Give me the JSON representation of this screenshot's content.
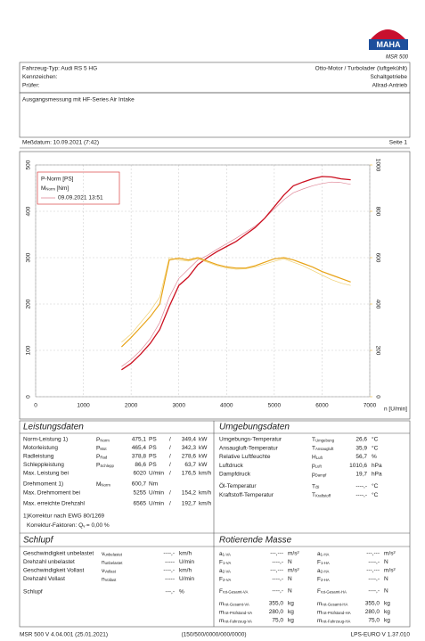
{
  "header": {
    "logo": "MAHA",
    "model": "MSR 500",
    "left": [
      "Fahrzeug-Typ:  Audi RS 5 HG",
      "Kennzeichen:",
      "Prüfer:"
    ],
    "right": [
      "Otto-Motor / Turbolader (luftgekühlt)",
      "Schaltgetriebe",
      "Allrad-Antrieb"
    ],
    "comment": "Ausgangsmessung mit HF-Series Air Intake",
    "date": "Meßdatum: 10.09.2021 (7:42)",
    "page": "Seite 1"
  },
  "chart": {
    "type": "line",
    "xlabel": "n [U/min]",
    "legend": {
      "power": "P-Norm [PS]",
      "torque": {
        "base": "M",
        "sub": "Norm",
        "rest": "[Nm]"
      },
      "reference": "09.09.2021 13:51"
    },
    "xlim": [
      0,
      7000
    ],
    "xticks": [
      0,
      1000,
      2000,
      3000,
      4000,
      5000,
      6000,
      7000
    ],
    "ylim": [
      0,
      500
    ],
    "yticks": [
      0,
      100,
      200,
      300,
      400,
      500
    ],
    "y2lim": [
      0,
      1000
    ],
    "y2ticks": [
      0,
      200,
      400,
      600,
      800,
      1000
    ],
    "grid": true,
    "x": [
      1800,
      2000,
      2200,
      2400,
      2600,
      2800,
      3000,
      3200,
      3400,
      3600,
      3800,
      4000,
      4200,
      4400,
      4600,
      4800,
      5000,
      5200,
      5400,
      5600,
      5800,
      6000,
      6200,
      6400,
      6600
    ],
    "series": [
      {
        "color": "#e08a9a",
        "width": 0.7,
        "values": [
          65,
          80,
          100,
          125,
          160,
          215,
          255,
          275,
          295,
          305,
          318,
          330,
          342,
          355,
          368,
          385,
          405,
          425,
          440,
          448,
          455,
          460,
          463,
          462,
          458
        ]
      },
      {
        "color": "#cc1020",
        "width": 1.3,
        "values": [
          58,
          72,
          92,
          115,
          145,
          195,
          240,
          258,
          285,
          300,
          313,
          324,
          335,
          350,
          365,
          385,
          410,
          435,
          455,
          463,
          470,
          475,
          474,
          470,
          468
        ]
      },
      {
        "color": "#f0d070",
        "width": 0.7,
        "axis": "y2",
        "values": [
          235,
          270,
          320,
          370,
          430,
          600,
          590,
          585,
          595,
          580,
          565,
          555,
          550,
          552,
          560,
          572,
          585,
          595,
          580,
          565,
          545,
          525,
          505,
          490,
          480
        ]
      },
      {
        "color": "#e8a317",
        "width": 1.2,
        "axis": "y2",
        "values": [
          215,
          255,
          300,
          345,
          400,
          590,
          598,
          590,
          600,
          585,
          570,
          560,
          555,
          555,
          565,
          580,
          595,
          600,
          590,
          575,
          560,
          540,
          525,
          510,
          495
        ]
      }
    ]
  },
  "performance": {
    "title": "Leistungsdaten",
    "rows": [
      {
        "label": "Norm-Leistung 1)",
        "sym": "P",
        "sub": "Norm",
        "v1": "475,1",
        "u1": "PS",
        "sep": "/",
        "v2": "349,4",
        "u2": "kW",
        "color": "#d62020"
      },
      {
        "label": "Motorleistung",
        "sym": "P",
        "sub": "Mot",
        "v1": "465,4",
        "u1": "PS",
        "sep": "/",
        "v2": "342,3",
        "u2": "kW",
        "color": "#d62020"
      },
      {
        "label": "Radleistung",
        "sym": "P",
        "sub": "Rad",
        "v1": "378,8",
        "u1": "PS",
        "sep": "/",
        "v2": "278,6",
        "u2": "kW",
        "color": "#2a2aa8"
      },
      {
        "label": "Schleppleistung",
        "sym": "P",
        "sub": "Schlepp",
        "v1": "86,6",
        "u1": "PS",
        "sep": "/",
        "v2": "63,7",
        "u2": "kW",
        "color": "#2a8a2a"
      },
      {
        "label": "Max. Leistung bei",
        "v1": "6020",
        "u1": "U/min",
        "sep": "/",
        "v2": "176,5",
        "u2": "km/h",
        "color": "#444444"
      },
      {
        "label": "Drehmoment 1)",
        "sym": "M",
        "sub": "Norm",
        "v1": "600,7",
        "u1": "Nm",
        "color": "#e0a000"
      },
      {
        "label": "Max. Drehmoment bei",
        "v1": "5255",
        "u1": "U/min",
        "sep": "/",
        "v2": "154,2",
        "u2": "km/h",
        "color": "#444444"
      },
      {
        "label": "Max. erreichte Drehzahl",
        "v1": "6565",
        "u1": "U/min",
        "sep": "/",
        "v2": "192,7",
        "u2": "km/h",
        "color": "#444444"
      }
    ],
    "note1": "1)Korrektur nach EWG 80/1269",
    "note2": {
      "text": "Korrektur-Faktoren: Q",
      "sub": "v",
      "rest": "=  0,00 %"
    }
  },
  "environment": {
    "title": "Umgebungsdaten",
    "rows": [
      {
        "label": "Umgebungs-Temperatur",
        "sym": "T",
        "sub": "Umgebung",
        "value": "26,6",
        "unit": "°C"
      },
      {
        "label": "Ansaugluft-Temperatur",
        "sym": "T",
        "sub": "Ansaugluft",
        "value": "35,9",
        "unit": "°C"
      },
      {
        "label": "Relative Luftfeuchte",
        "sym": "H",
        "sub": "Luft",
        "value": "56,7",
        "unit": "%"
      },
      {
        "label": "Luftdruck",
        "sym": "p",
        "sub": "Luft",
        "value": "1010,6",
        "unit": "hPa"
      },
      {
        "label": "Dampfdruck",
        "sym": "p",
        "sub": "Dampf",
        "value": "19,7",
        "unit": "hPa"
      },
      {
        "label": "Öl-Temperatur",
        "sym": "T",
        "sub": "Öl",
        "value": "----,-",
        "unit": "°C"
      },
      {
        "label": "Kraftstoff-Temperatur",
        "sym": "T",
        "sub": "Kraftstoff",
        "value": "----,-",
        "unit": "°C"
      }
    ]
  },
  "slip": {
    "title": "Schlupf",
    "rows": [
      {
        "label": "Geschwindigkeit unbelastet",
        "sym": "v",
        "sub": "unbelastet",
        "value": "----,-",
        "unit": "km/h"
      },
      {
        "label": "Drehzahl unbelastet",
        "sym": "n",
        "sub": "unbelastet",
        "value": "-----",
        "unit": "U/min"
      },
      {
        "label": "Geschwindigkeit Vollast",
        "sym": "v",
        "sub": "Vollast",
        "value": "----,-",
        "unit": "km/h"
      },
      {
        "label": "Drehzahl Vollast",
        "sym": "n",
        "sub": "Vollast",
        "value": "-----",
        "unit": "U/min"
      },
      {
        "label": "Schlupf",
        "value": "---,-",
        "unit": "%"
      }
    ]
  },
  "rotating": {
    "title": "Rotierende Masse",
    "columns": [
      [
        {
          "sym": "a",
          "sub": "1-VA",
          "value": "---,---",
          "unit": "m/s²"
        },
        {
          "sym": "F",
          "sub": "1-VA",
          "value": "----,-",
          "unit": "N"
        },
        {
          "sym": "a",
          "sub": "2-VA",
          "value": "---,---",
          "unit": "m/s²"
        },
        {
          "sym": "F",
          "sub": "2-VA",
          "value": "----,-",
          "unit": "N"
        },
        {
          "sym": "F",
          "sub": "rot-Gesamt-VA",
          "value": "----,-",
          "unit": "N"
        },
        {
          "sym": "m",
          "sub": "rot-Gesamt-VA",
          "value": "355,0",
          "unit": "kg"
        },
        {
          "sym": "m",
          "sub": "rot-Prüfstand-VA",
          "value": "280,0",
          "unit": "kg"
        },
        {
          "sym": "m",
          "sub": "rot-Fahrzeug-VA",
          "value": "75,0",
          "unit": "kg"
        }
      ],
      [
        {
          "sym": "a",
          "sub": "1-HA",
          "value": "---,---",
          "unit": "m/s²"
        },
        {
          "sym": "F",
          "sub": "1-HA",
          "value": "----,-",
          "unit": "N"
        },
        {
          "sym": "a",
          "sub": "2-HA",
          "value": "---,---",
          "unit": "m/s²"
        },
        {
          "sym": "F",
          "sub": "2-HA",
          "value": "----,-",
          "unit": "N"
        },
        {
          "sym": "F",
          "sub": "rot-Gesamt-HA",
          "value": "----,-",
          "unit": "N"
        },
        {
          "sym": "m",
          "sub": "rot-Gesamt-HA",
          "value": "355,0",
          "unit": "kg"
        },
        {
          "sym": "m",
          "sub": "rot-Prüfstand-HA",
          "value": "280,0",
          "unit": "kg"
        },
        {
          "sym": "m",
          "sub": "rot-Fahrzeug-HA",
          "value": "75,0",
          "unit": "kg"
        }
      ]
    ]
  },
  "footer": [
    "MSR 500 V 4.04.001 (25.01.2021)",
    "(150/500/0000/000/0000)",
    "LPS-EURO V 1.37.010"
  ]
}
